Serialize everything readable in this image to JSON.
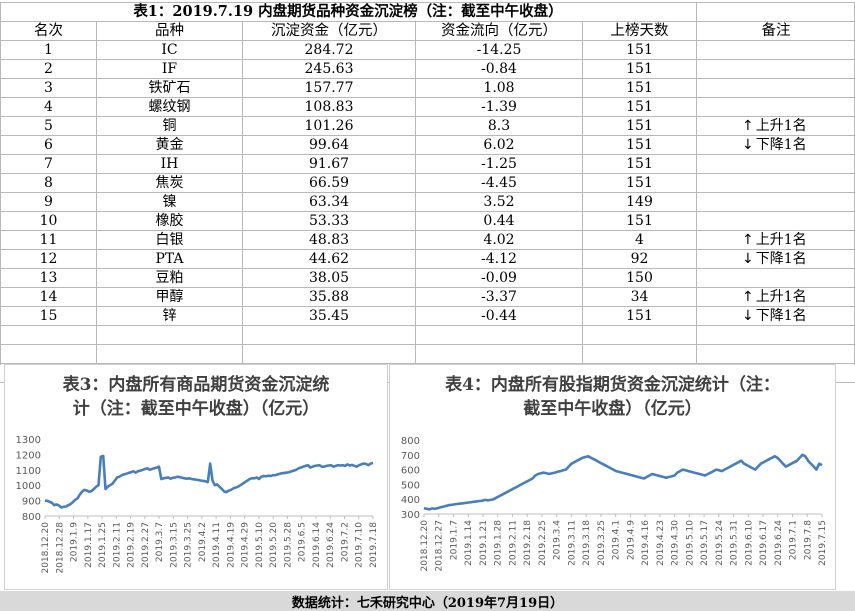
{
  "table": {
    "title": "表1：2019.7.19 内盘期货品种资金沉淀榜（注：截至中午收盘）",
    "headers": [
      "名次",
      "品种",
      "沉淀资金（亿元）",
      "资金流向（亿元）",
      "上榜天数",
      "备注"
    ],
    "rows": [
      {
        "rank": "1",
        "name": "IC",
        "amount": "284.72",
        "flow": "-14.25",
        "days": "151",
        "note": ""
      },
      {
        "rank": "2",
        "name": "IF",
        "amount": "245.63",
        "flow": "-0.84",
        "days": "151",
        "note": ""
      },
      {
        "rank": "3",
        "name": "铁矿石",
        "amount": "157.77",
        "flow": "1.08",
        "days": "151",
        "note": ""
      },
      {
        "rank": "4",
        "name": "螺纹钢",
        "amount": "108.83",
        "flow": "-1.39",
        "days": "151",
        "note": ""
      },
      {
        "rank": "5",
        "name": "铜",
        "amount": "101.26",
        "flow": "8.3",
        "days": "151",
        "note": "上升1名",
        "dir": "up"
      },
      {
        "rank": "6",
        "name": "黄金",
        "amount": "99.64",
        "flow": "6.02",
        "days": "151",
        "note": "下降1名",
        "dir": "down"
      },
      {
        "rank": "7",
        "name": "IH",
        "amount": "91.67",
        "flow": "-1.25",
        "days": "151",
        "note": ""
      },
      {
        "rank": "8",
        "name": "焦炭",
        "amount": "66.59",
        "flow": "-4.45",
        "days": "151",
        "note": ""
      },
      {
        "rank": "9",
        "name": "镍",
        "amount": "63.34",
        "flow": "3.52",
        "days": "149",
        "note": ""
      },
      {
        "rank": "10",
        "name": "橡胶",
        "amount": "53.33",
        "flow": "0.44",
        "days": "151",
        "note": ""
      },
      {
        "rank": "11",
        "name": "白银",
        "amount": "48.83",
        "flow": "4.02",
        "days": "4",
        "note": "上升1名",
        "dir": "up"
      },
      {
        "rank": "12",
        "name": "PTA",
        "amount": "44.62",
        "flow": "-4.12",
        "days": "92",
        "note": "下降1名",
        "dir": "down"
      },
      {
        "rank": "13",
        "name": "豆粕",
        "amount": "38.05",
        "flow": "-0.09",
        "days": "150",
        "note": ""
      },
      {
        "rank": "14",
        "name": "甲醇",
        "amount": "35.88",
        "flow": "-3.37",
        "days": "34",
        "note": "上升1名",
        "dir": "up"
      },
      {
        "rank": "15",
        "name": "锌",
        "amount": "35.45",
        "flow": "-0.44",
        "days": "151",
        "note": "下降1名",
        "dir": "down"
      }
    ],
    "grid_color": "#b8b8b8"
  },
  "chart_data": [
    {
      "type": "line",
      "title_line1": "表3：内盘所有商品期货资金沉淀统",
      "title_line2": "计（注：截至中午收盘）（亿元）",
      "line_color": "#4a7ebb",
      "ylim": [
        800,
        1300
      ],
      "yticks": [
        "800",
        "900",
        "1000",
        "1100",
        "1200",
        "1300"
      ],
      "xticks": [
        "2018.12.20",
        "2018.12.28",
        "2019.1.9",
        "2019.1.17",
        "2019.1.25",
        "2019.2.11",
        "2019.2.19",
        "2019.2.27",
        "2019.3.7",
        "2019.3.15",
        "2019.3.25",
        "2019.4.2",
        "2019.4.11",
        "2019.4.19",
        "2019.4.29",
        "2019.5.10",
        "2019.5.20",
        "2019.5.28",
        "2019.6.5",
        "2019.6.14",
        "2019.6.24",
        "2019.7.2",
        "2019.7.10",
        "2019.7.18"
      ],
      "values": [
        900,
        898,
        892,
        885,
        870,
        875,
        868,
        855,
        860,
        862,
        870,
        878,
        890,
        905,
        915,
        940,
        960,
        970,
        965,
        958,
        962,
        975,
        990,
        1000,
        1185,
        1190,
        975,
        990,
        1000,
        1010,
        1030,
        1050,
        1055,
        1065,
        1070,
        1075,
        1080,
        1085,
        1090,
        1082,
        1090,
        1095,
        1100,
        1105,
        1110,
        1100,
        1105,
        1110,
        1115,
        1120,
        1040,
        1045,
        1048,
        1050,
        1042,
        1048,
        1050,
        1055,
        1052,
        1048,
        1045,
        1042,
        1045,
        1040,
        1038,
        1036,
        1034,
        1030,
        1028,
        1025,
        1020,
        1140,
        1030,
        1000,
        1005,
        990,
        975,
        960,
        955,
        965,
        970,
        980,
        985,
        990,
        1000,
        1010,
        1020,
        1030,
        1040,
        1045,
        1045,
        1050,
        1040,
        1055,
        1060,
        1058,
        1062,
        1060,
        1065,
        1065,
        1070,
        1075,
        1078,
        1080,
        1082,
        1085,
        1090,
        1095,
        1100,
        1110,
        1115,
        1120,
        1125,
        1130,
        1115,
        1120,
        1125,
        1128,
        1130,
        1120,
        1120,
        1125,
        1128,
        1130,
        1120,
        1125,
        1130,
        1128,
        1130,
        1125,
        1135,
        1128,
        1132,
        1125,
        1120,
        1130,
        1135,
        1140,
        1138,
        1130,
        1140,
        1145
      ]
    },
    {
      "type": "line",
      "title_line1": "表4：内盘所有股指期货资金沉淀统计（注：",
      "title_line2": "截至中午收盘）（亿元）",
      "line_color": "#4a7ebb",
      "ylim": [
        300,
        800
      ],
      "yticks": [
        "300",
        "400",
        "500",
        "600",
        "700",
        "800"
      ],
      "xticks": [
        "2018.12.20",
        "2018.12.27",
        "2019.1.7",
        "2019.1.14",
        "2019.1.21",
        "2019.1.28",
        "2019.2.11",
        "2019.2.18",
        "2019.2.25",
        "2019.3.4",
        "2019.3.11",
        "2019.3.18",
        "2019.3.25",
        "2019.4.1",
        "2019.4.9",
        "2019.4.16",
        "2019.4.23",
        "2019.4.30",
        "2019.5.10",
        "2019.5.17",
        "2019.5.24",
        "2019.5.31",
        "2019.6.10",
        "2019.6.17",
        "2019.6.24",
        "2019.7.1",
        "2019.7.8",
        "2019.7.15"
      ],
      "values": [
        340,
        335,
        332,
        338,
        335,
        340,
        345,
        350,
        355,
        360,
        362,
        365,
        368,
        370,
        372,
        375,
        378,
        380,
        383,
        385,
        388,
        390,
        395,
        392,
        395,
        400,
        410,
        420,
        430,
        440,
        450,
        460,
        470,
        480,
        490,
        500,
        510,
        520,
        530,
        540,
        560,
        570,
        575,
        580,
        575,
        570,
        575,
        580,
        585,
        590,
        595,
        600,
        620,
        640,
        650,
        660,
        670,
        680,
        685,
        690,
        680,
        670,
        660,
        650,
        640,
        630,
        620,
        610,
        600,
        590,
        585,
        580,
        575,
        570,
        565,
        560,
        555,
        550,
        545,
        540,
        550,
        560,
        570,
        565,
        560,
        555,
        550,
        545,
        550,
        555,
        560,
        580,
        590,
        600,
        595,
        590,
        585,
        580,
        575,
        570,
        565,
        560,
        570,
        580,
        590,
        600,
        595,
        590,
        600,
        610,
        620,
        630,
        640,
        650,
        660,
        640,
        630,
        620,
        610,
        600,
        620,
        640,
        650,
        660,
        670,
        680,
        690,
        680,
        660,
        640,
        620,
        630,
        640,
        650,
        660,
        680,
        700,
        690,
        660,
        640,
        620,
        600,
        640,
        630
      ]
    }
  ],
  "footer": "数据统计：七禾研究中心（2019年7月19日）"
}
